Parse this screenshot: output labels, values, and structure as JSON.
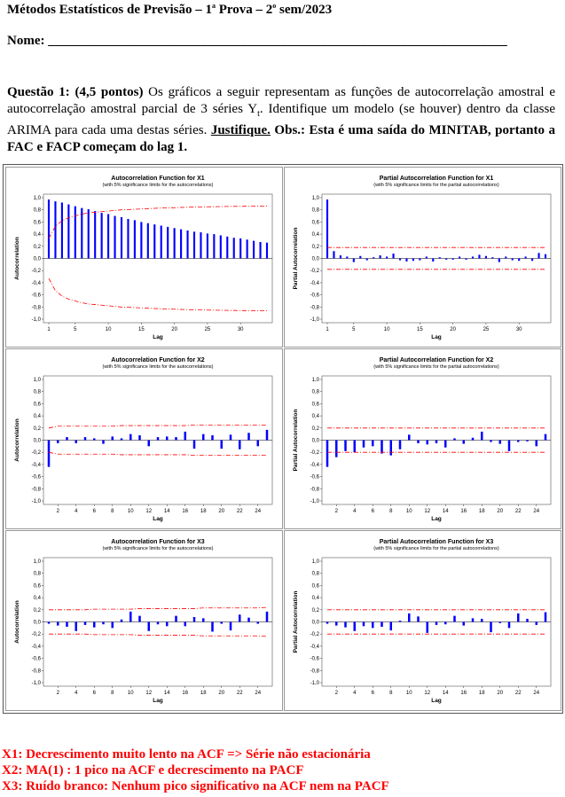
{
  "header": {
    "title_main": "Métodos Estatísticos de Previsão – 1",
    "title_sup1": "a",
    "title_mid": " Prova – 2",
    "title_sup2": "o",
    "title_end": " sem/2023",
    "name_label": "Nome: ",
    "name_line": "_____________________________________________________________________"
  },
  "question": {
    "label": "Questão 1: (4,5 pontos)",
    "text1": " Os gráficos a seguir representam as funções de autocorrelação amostral e autocorrelação amostral parcial de 3 séries Y",
    "subscript": "t",
    "text2": ". Identifique um modelo (se houver) dentro da classe ARIMA para cada uma destas séries. ",
    "justify": "Justifique.",
    "obs": " Obs.: Esta é uma saída do MINITAB, portanto a FAC e FACP começam do lag 1."
  },
  "chart_data": [
    {
      "type": "bar",
      "title": "Autocorrelation Function for X1",
      "subtitle": "(with 5% significance limits for the autocorrelations)",
      "xlabel": "Lag",
      "ylabel": "Autocorrelation",
      "ylim": [
        -1,
        1
      ],
      "yticks": [
        "1,0",
        "0,8",
        "0,6",
        "0,4",
        "0,2",
        "0,0",
        "-0,2",
        "-0,4",
        "-0,6",
        "-0,8",
        "-1,0"
      ],
      "xticks": [
        "1",
        "5",
        "10",
        "15",
        "20",
        "25",
        "30"
      ],
      "x": [
        1,
        2,
        3,
        4,
        5,
        6,
        7,
        8,
        9,
        10,
        11,
        12,
        13,
        14,
        15,
        16,
        17,
        18,
        19,
        20,
        21,
        22,
        23,
        24,
        25,
        26,
        27,
        28,
        29,
        30,
        31,
        32,
        33,
        34
      ],
      "values": [
        0.97,
        0.94,
        0.92,
        0.89,
        0.86,
        0.83,
        0.81,
        0.78,
        0.75,
        0.73,
        0.7,
        0.68,
        0.65,
        0.63,
        0.6,
        0.58,
        0.56,
        0.54,
        0.52,
        0.5,
        0.48,
        0.46,
        0.44,
        0.43,
        0.41,
        0.4,
        0.38,
        0.36,
        0.34,
        0.33,
        0.31,
        0.29,
        0.27,
        0.26
      ],
      "limit": [
        0.33,
        0.53,
        0.62,
        0.67,
        0.7,
        0.73,
        0.75,
        0.76,
        0.77,
        0.78,
        0.79,
        0.8,
        0.805,
        0.81,
        0.815,
        0.82,
        0.825,
        0.83,
        0.833,
        0.836,
        0.84,
        0.843,
        0.846,
        0.848,
        0.85,
        0.852,
        0.854,
        0.856,
        0.857,
        0.858,
        0.859,
        0.86,
        0.861,
        0.862
      ]
    },
    {
      "type": "bar",
      "title": "Partial Autocorrelation Function for X1",
      "subtitle": "(with 5% significance limits for the partial autocorrelations)",
      "xlabel": "Lag",
      "ylabel": "Partial Autocorrelation",
      "ylim": [
        -1,
        1
      ],
      "yticks": [
        "1,0",
        "0,8",
        "0,6",
        "0,4",
        "0,2",
        "0,0",
        "-0,2",
        "-0,4",
        "-0,6",
        "-0,8",
        "-1,0"
      ],
      "xticks": [
        "1",
        "5",
        "10",
        "15",
        "20",
        "25",
        "30"
      ],
      "x": [
        1,
        2,
        3,
        4,
        5,
        6,
        7,
        8,
        9,
        10,
        11,
        12,
        13,
        14,
        15,
        16,
        17,
        18,
        19,
        20,
        21,
        22,
        23,
        24,
        25,
        26,
        27,
        28,
        29,
        30,
        31,
        32,
        33,
        34
      ],
      "values": [
        0.97,
        0.12,
        0.05,
        0.03,
        -0.06,
        0.04,
        -0.03,
        0.02,
        0.05,
        0.03,
        0.08,
        -0.03,
        -0.05,
        -0.04,
        -0.03,
        0.03,
        -0.05,
        0.02,
        -0.02,
        -0.02,
        0.03,
        -0.02,
        0.03,
        0.06,
        0.04,
        0.02,
        -0.06,
        0.03,
        -0.03,
        -0.04,
        0.03,
        -0.04,
        0.09,
        0.07
      ],
      "limit": 0.18
    },
    {
      "type": "bar",
      "title": "Autocorrelation Function for X2",
      "subtitle": "(with 5% significance limits for the autocorrelations)",
      "xlabel": "Lag",
      "ylabel": "Autocorrelation",
      "ylim": [
        -1,
        1
      ],
      "yticks": [
        "1,0",
        "0,8",
        "0,6",
        "0,4",
        "0,2",
        "0,0",
        "-0,2",
        "-0,4",
        "-0,6",
        "-0,8",
        "-1,0"
      ],
      "xticks": [
        "2",
        "4",
        "6",
        "8",
        "10",
        "12",
        "14",
        "16",
        "18",
        "20",
        "22",
        "24"
      ],
      "x": [
        1,
        2,
        3,
        4,
        5,
        6,
        7,
        8,
        9,
        10,
        11,
        12,
        13,
        14,
        15,
        16,
        17,
        18,
        19,
        20,
        21,
        22,
        23,
        24,
        25
      ],
      "values": [
        -0.44,
        -0.05,
        0.05,
        -0.05,
        0.05,
        0.03,
        -0.06,
        0.06,
        0.03,
        0.1,
        0.08,
        -0.1,
        0.05,
        0.06,
        0.05,
        0.14,
        -0.14,
        0.1,
        0.08,
        -0.14,
        0.09,
        -0.15,
        0.12,
        -0.1,
        0.17
      ],
      "limit": [
        0.2,
        0.23,
        0.23,
        0.23,
        0.23,
        0.23,
        0.23,
        0.23,
        0.24,
        0.24,
        0.24,
        0.24,
        0.24,
        0.24,
        0.24,
        0.24,
        0.25,
        0.25,
        0.25,
        0.25,
        0.25,
        0.25,
        0.25,
        0.25,
        0.25
      ]
    },
    {
      "type": "bar",
      "title": "Partial Autocorrelation Function for X2",
      "subtitle": "(with 5% significance limits for the partial autocorrelations)",
      "xlabel": "Lag",
      "ylabel": "Partial Autocorrelation",
      "ylim": [
        -1,
        1
      ],
      "yticks": [
        "1,0",
        "0,8",
        "0,6",
        "0,4",
        "0,2",
        "0,0",
        "-0,2",
        "-0,4",
        "-0,6",
        "-0,8",
        "-1,0"
      ],
      "xticks": [
        "2",
        "4",
        "6",
        "8",
        "10",
        "12",
        "14",
        "16",
        "18",
        "20",
        "22",
        "24"
      ],
      "x": [
        1,
        2,
        3,
        4,
        5,
        6,
        7,
        8,
        9,
        10,
        11,
        12,
        13,
        14,
        15,
        16,
        17,
        18,
        19,
        20,
        21,
        22,
        23,
        24,
        25
      ],
      "values": [
        -0.44,
        -0.28,
        -0.18,
        -0.2,
        -0.12,
        -0.1,
        -0.22,
        -0.25,
        -0.15,
        0.09,
        -0.05,
        -0.07,
        -0.05,
        -0.12,
        0.03,
        -0.06,
        0.04,
        0.14,
        -0.03,
        -0.06,
        -0.18,
        -0.03,
        -0.02,
        -0.1,
        0.1
      ],
      "limit": 0.2
    },
    {
      "type": "bar",
      "title": "Autocorrelation Function for X3",
      "subtitle": "(with 5% significance limits for the autocorrelations)",
      "xlabel": "Lag",
      "ylabel": "Autocorrelation",
      "ylim": [
        -1,
        1
      ],
      "yticks": [
        "1,0",
        "0,8",
        "0,6",
        "0,4",
        "0,2",
        "0,0",
        "-0,2",
        "-0,4",
        "-0,6",
        "-0,8",
        "-1,0"
      ],
      "xticks": [
        "2",
        "4",
        "6",
        "8",
        "10",
        "12",
        "14",
        "16",
        "18",
        "20",
        "22",
        "24"
      ],
      "x": [
        1,
        2,
        3,
        4,
        5,
        6,
        7,
        8,
        9,
        10,
        11,
        12,
        13,
        14,
        15,
        16,
        17,
        18,
        19,
        20,
        21,
        22,
        23,
        24,
        25
      ],
      "values": [
        -0.03,
        -0.06,
        -0.08,
        -0.15,
        -0.05,
        -0.09,
        -0.04,
        -0.1,
        0.04,
        0.17,
        0.1,
        -0.15,
        -0.04,
        -0.07,
        0.1,
        -0.07,
        0.08,
        0.06,
        -0.16,
        -0.03,
        -0.14,
        0.12,
        0.07,
        -0.03,
        0.17
      ],
      "limit": [
        0.2,
        0.2,
        0.2,
        0.2,
        0.2,
        0.21,
        0.21,
        0.21,
        0.21,
        0.21,
        0.22,
        0.22,
        0.22,
        0.22,
        0.22,
        0.22,
        0.22,
        0.23,
        0.23,
        0.23,
        0.23,
        0.23,
        0.23,
        0.23,
        0.24
      ]
    },
    {
      "type": "bar",
      "title": "Partial Autocorrelation Function for X3",
      "subtitle": "(with 5% significance limits for the partial autocorrelations)",
      "xlabel": "Lag",
      "ylabel": "Partial Autocorrelation",
      "ylim": [
        -1,
        1
      ],
      "yticks": [
        "1,0",
        "0,8",
        "0,6",
        "0,4",
        "0,2",
        "0,0",
        "-0,2",
        "-0,4",
        "-0,6",
        "-0,8",
        "-1,0"
      ],
      "xticks": [
        "2",
        "4",
        "6",
        "8",
        "10",
        "12",
        "14",
        "16",
        "18",
        "20",
        "22",
        "24"
      ],
      "x": [
        1,
        2,
        3,
        4,
        5,
        6,
        7,
        8,
        9,
        10,
        11,
        12,
        13,
        14,
        15,
        16,
        17,
        18,
        19,
        20,
        21,
        22,
        23,
        24,
        25
      ],
      "values": [
        -0.03,
        -0.06,
        -0.09,
        -0.15,
        -0.07,
        -0.1,
        -0.08,
        -0.14,
        0.02,
        0.14,
        0.09,
        -0.18,
        -0.05,
        -0.04,
        0.1,
        -0.06,
        0.06,
        0.05,
        -0.17,
        -0.02,
        -0.1,
        0.14,
        0.05,
        -0.05,
        0.16
      ],
      "limit": 0.2
    }
  ],
  "answers": {
    "a1": "X1:  Decrescimento muito lento na ACF => Série não estacionária",
    "a2": "X2:   MA(1) : 1 pico na ACF e decrescimento na PACF",
    "a3": "X3: Ruído branco: Nenhum pico significativo na ACF nem na PACF"
  },
  "colors": {
    "bar": "#0000ff",
    "limit": "#ff0000",
    "answer": "#ff0000"
  }
}
